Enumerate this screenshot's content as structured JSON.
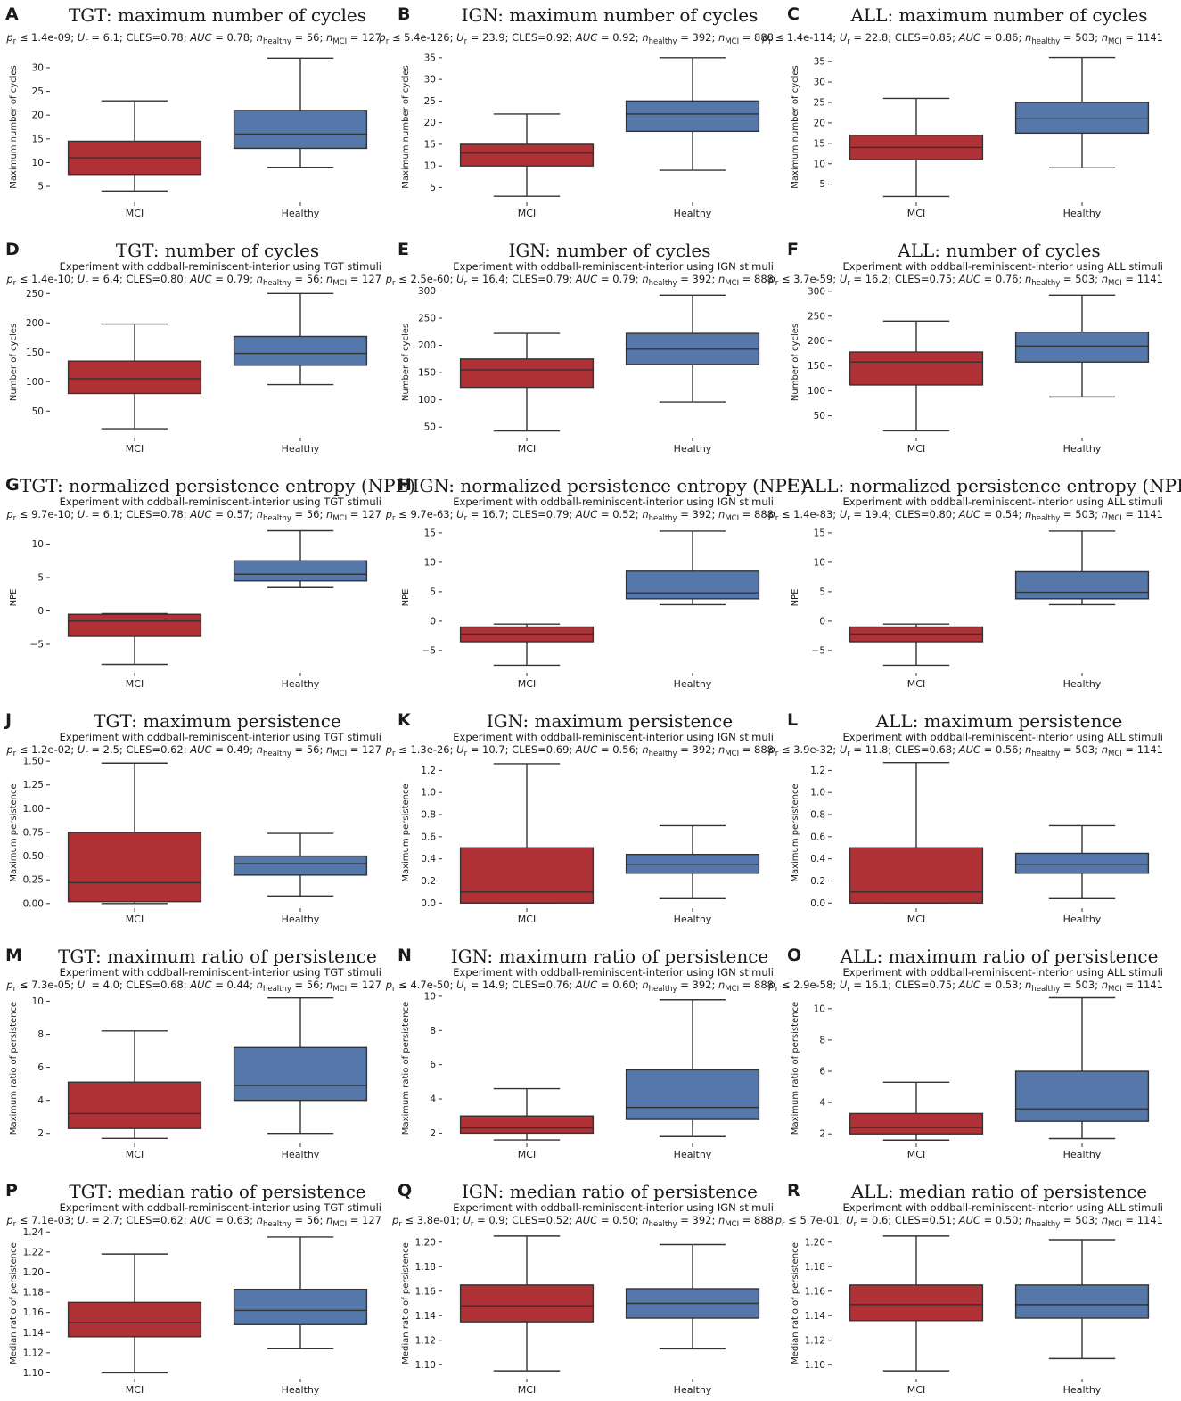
{
  "colors": {
    "mci": "#b03236",
    "healthy": "#5577aa",
    "line": "#333333"
  },
  "chart_data": [
    {
      "letter": "A",
      "title": "TGT: maximum number of cycles",
      "subtitle": "",
      "stats": {
        "p": "1.4e-09",
        "U": "6.1",
        "cles": "0.78",
        "auc": "0.78",
        "n_healthy": "56",
        "n_mci": "127"
      },
      "type": "box",
      "ylabel": "Maximum number of cycles",
      "ylim": [
        2,
        33
      ],
      "yticks": [
        5,
        10,
        15,
        20,
        25,
        30
      ],
      "yticklabels": [
        "5",
        "10",
        "15",
        "20",
        "25",
        "30"
      ],
      "categories": [
        "MCI",
        "Healthy"
      ],
      "boxes": [
        {
          "min": 4,
          "q1": 7.5,
          "median": 11,
          "q3": 14.5,
          "max": 23
        },
        {
          "min": 9,
          "q1": 13,
          "median": 16,
          "q3": 21,
          "max": 32
        }
      ]
    },
    {
      "letter": "B",
      "title": "IGN: maximum number of cycles",
      "subtitle": "",
      "stats": {
        "p": "5.4e-126",
        "U": "23.9",
        "cles": "0.92",
        "auc": "0.92",
        "n_healthy": "392",
        "n_mci": "888"
      },
      "type": "box",
      "ylabel": "Maximum number of cycles",
      "ylim": [
        2,
        36
      ],
      "yticks": [
        5,
        10,
        15,
        20,
        25,
        30,
        35
      ],
      "yticklabels": [
        "5",
        "10",
        "15",
        "20",
        "25",
        "30",
        "35"
      ],
      "categories": [
        "MCI",
        "Healthy"
      ],
      "boxes": [
        {
          "min": 3,
          "q1": 10,
          "median": 13,
          "q3": 15,
          "max": 22
        },
        {
          "min": 9,
          "q1": 18,
          "median": 22,
          "q3": 25,
          "max": 35
        }
      ]
    },
    {
      "letter": "C",
      "title": "ALL: maximum number of cycles",
      "subtitle": "",
      "stats": {
        "p": "1.4e-114",
        "U": "22.8",
        "cles": "0.85",
        "auc": "0.86",
        "n_healthy": "503",
        "n_mci": "1141"
      },
      "type": "box",
      "ylabel": "Maximum number of cycles",
      "ylim": [
        1,
        37
      ],
      "yticks": [
        5,
        10,
        15,
        20,
        25,
        30,
        35
      ],
      "yticklabels": [
        "5",
        "10",
        "15",
        "20",
        "25",
        "30",
        "35"
      ],
      "categories": [
        "MCI",
        "Healthy"
      ],
      "boxes": [
        {
          "min": 2,
          "q1": 11,
          "median": 14,
          "q3": 17,
          "max": 26
        },
        {
          "min": 9,
          "q1": 17.5,
          "median": 21,
          "q3": 25,
          "max": 36
        }
      ]
    },
    {
      "letter": "D",
      "title": "TGT: number of cycles",
      "subtitle": "Experiment with oddball-reminiscent-interior using TGT stimuli",
      "stats": {
        "p": "1.4e-10",
        "U": "6.4",
        "cles": "0.80",
        "auc": "0.79",
        "n_healthy": "56",
        "n_mci": "127"
      },
      "type": "box",
      "ylabel": "Number of cycles",
      "ylim": [
        8,
        258
      ],
      "yticks": [
        50,
        100,
        150,
        200,
        250
      ],
      "yticklabels": [
        "50",
        "100",
        "150",
        "200",
        "250"
      ],
      "categories": [
        "MCI",
        "Healthy"
      ],
      "boxes": [
        {
          "min": 20,
          "q1": 80,
          "median": 105,
          "q3": 135,
          "max": 198
        },
        {
          "min": 95,
          "q1": 128,
          "median": 148,
          "q3": 177,
          "max": 250
        }
      ]
    },
    {
      "letter": "E",
      "title": "IGN: number of cycles",
      "subtitle": "Experiment with oddball-reminiscent-interior using IGN stimuli",
      "stats": {
        "p": "2.5e-60",
        "U": "16.4",
        "cles": "0.79",
        "auc": "0.79",
        "n_healthy": "392",
        "n_mci": "888"
      },
      "type": "box",
      "ylabel": "Number of cycles",
      "ylim": [
        34,
        304
      ],
      "yticks": [
        50,
        100,
        150,
        200,
        250,
        300
      ],
      "yticklabels": [
        "50",
        "100",
        "150",
        "200",
        "250",
        "300"
      ],
      "categories": [
        "MCI",
        "Healthy"
      ],
      "boxes": [
        {
          "min": 43,
          "q1": 123,
          "median": 155,
          "q3": 175,
          "max": 222
        },
        {
          "min": 96,
          "q1": 165,
          "median": 193,
          "q3": 222,
          "max": 292
        }
      ]
    },
    {
      "letter": "F",
      "title": "ALL: number of cycles",
      "subtitle": "Experiment with oddball-reminiscent-interior using ALL stimuli",
      "stats": {
        "p": "3.7e-59",
        "U": "16.2",
        "cles": "0.75",
        "auc": "0.76",
        "n_healthy": "503",
        "n_mci": "1141"
      },
      "type": "box",
      "ylabel": "Number of cycles",
      "ylim": [
        10,
        305
      ],
      "yticks": [
        50,
        100,
        150,
        200,
        250,
        300
      ],
      "yticklabels": [
        "50",
        "100",
        "150",
        "200",
        "250",
        "300"
      ],
      "categories": [
        "MCI",
        "Healthy"
      ],
      "boxes": [
        {
          "min": 20,
          "q1": 112,
          "median": 158,
          "q3": 178,
          "max": 240
        },
        {
          "min": 88,
          "q1": 158,
          "median": 190,
          "q3": 218,
          "max": 292
        }
      ]
    },
    {
      "letter": "G",
      "title": "TGT: normalized persistence entropy (NPE)",
      "subtitle": "Experiment with oddball-reminiscent-interior using TGT stimuli",
      "stats": {
        "p": "9.7e-10",
        "U": "6.1",
        "cles": "0.78",
        "auc": "0.57",
        "n_healthy": "56",
        "n_mci": "127"
      },
      "type": "box",
      "ylabel": "NPE",
      "ylim": [
        -9,
        13
      ],
      "yticks": [
        -5,
        0,
        5,
        10
      ],
      "yticklabels": [
        "−5",
        "0",
        "5",
        "10"
      ],
      "categories": [
        "MCI",
        "Healthy"
      ],
      "boxes": [
        {
          "min": -8,
          "q1": -3.8,
          "median": -1.5,
          "q3": -0.5,
          "max": -0.4
        },
        {
          "min": 3.5,
          "q1": 4.5,
          "median": 5.5,
          "q3": 7.5,
          "max": 12
        }
      ]
    },
    {
      "letter": "H",
      "title": "IGN: normalized persistence entropy (NPE)",
      "subtitle": "Experiment with oddball-reminiscent-interior using IGN stimuli",
      "stats": {
        "p": "9.7e-63",
        "U": "16.7",
        "cles": "0.79",
        "auc": "0.52",
        "n_healthy": "392",
        "n_mci": "888"
      },
      "type": "box",
      "ylabel": "NPE",
      "ylim": [
        -8.5,
        16.5
      ],
      "yticks": [
        -5,
        0,
        5,
        10,
        15
      ],
      "yticklabels": [
        "−5",
        "0",
        "5",
        "10",
        "15"
      ],
      "categories": [
        "MCI",
        "Healthy"
      ],
      "boxes": [
        {
          "min": -7.5,
          "q1": -3.5,
          "median": -2.2,
          "q3": -1,
          "max": -0.5
        },
        {
          "min": 2.8,
          "q1": 3.8,
          "median": 4.8,
          "q3": 8.5,
          "max": 15.3
        }
      ]
    },
    {
      "letter": "I",
      "title": "ALL: normalized persistence entropy (NPE)",
      "subtitle": "Experiment with oddball-reminiscent-interior using ALL stimuli",
      "stats": {
        "p": "1.4e-83",
        "U": "19.4",
        "cles": "0.80",
        "auc": "0.54",
        "n_healthy": "503",
        "n_mci": "1141"
      },
      "type": "box",
      "ylabel": "NPE",
      "ylim": [
        -8.5,
        16.5
      ],
      "yticks": [
        -5,
        0,
        5,
        10,
        15
      ],
      "yticklabels": [
        "−5",
        "0",
        "5",
        "10",
        "15"
      ],
      "categories": [
        "MCI",
        "Healthy"
      ],
      "boxes": [
        {
          "min": -7.5,
          "q1": -3.5,
          "median": -2.2,
          "q3": -1,
          "max": -0.5
        },
        {
          "min": 2.8,
          "q1": 3.8,
          "median": 4.9,
          "q3": 8.4,
          "max": 15.3
        }
      ]
    },
    {
      "letter": "J",
      "title": "TGT: maximum persistence",
      "subtitle": "Experiment with oddball-reminiscent-interior using TGT stimuli",
      "stats": {
        "p": "1.2e-02",
        "U": "2.5",
        "cles": "0.62",
        "auc": "0.49",
        "n_healthy": "56",
        "n_mci": "127"
      },
      "type": "box",
      "ylabel": "Maximum persistence",
      "ylim": [
        -0.03,
        1.52
      ],
      "yticks": [
        0,
        0.25,
        0.5,
        0.75,
        1,
        1.25,
        1.5
      ],
      "yticklabels": [
        "0.00",
        "0.25",
        "0.50",
        "0.75",
        "1.00",
        "1.25",
        "1.50"
      ],
      "categories": [
        "MCI",
        "Healthy"
      ],
      "boxes": [
        {
          "min": 0,
          "q1": 0.02,
          "median": 0.22,
          "q3": 0.75,
          "max": 1.48
        },
        {
          "min": 0.08,
          "q1": 0.3,
          "median": 0.42,
          "q3": 0.5,
          "max": 0.74
        }
      ]
    },
    {
      "letter": "K",
      "title": "IGN: maximum persistence",
      "subtitle": "Experiment with oddball-reminiscent-interior using IGN stimuli",
      "stats": {
        "p": "1.3e-26",
        "U": "10.7",
        "cles": "0.69",
        "auc": "0.56",
        "n_healthy": "392",
        "n_mci": "888"
      },
      "type": "box",
      "ylabel": "Maximum persistence",
      "ylim": [
        -0.03,
        1.3
      ],
      "yticks": [
        0,
        0.2,
        0.4,
        0.6,
        0.8,
        1,
        1.2
      ],
      "yticklabels": [
        "0.0",
        "0.2",
        "0.4",
        "0.6",
        "0.8",
        "1.0",
        "1.2"
      ],
      "categories": [
        "MCI",
        "Healthy"
      ],
      "boxes": [
        {
          "min": 0,
          "q1": 0,
          "median": 0.1,
          "q3": 0.5,
          "max": 1.26
        },
        {
          "min": 0.04,
          "q1": 0.27,
          "median": 0.35,
          "q3": 0.44,
          "max": 0.7
        }
      ]
    },
    {
      "letter": "L",
      "title": "ALL: maximum persistence",
      "subtitle": "Experiment with oddball-reminiscent-interior using ALL stimuli",
      "stats": {
        "p": "3.9e-32",
        "U": "11.8",
        "cles": "0.68",
        "auc": "0.56",
        "n_healthy": "503",
        "n_mci": "1141"
      },
      "type": "box",
      "ylabel": "Maximum persistence",
      "ylim": [
        -0.03,
        1.3
      ],
      "yticks": [
        0,
        0.2,
        0.4,
        0.6,
        0.8,
        1,
        1.2
      ],
      "yticklabels": [
        "0.0",
        "0.2",
        "0.4",
        "0.6",
        "0.8",
        "1.0",
        "1.2"
      ],
      "categories": [
        "MCI",
        "Healthy"
      ],
      "boxes": [
        {
          "min": 0,
          "q1": 0,
          "median": 0.1,
          "q3": 0.5,
          "max": 1.27
        },
        {
          "min": 0.04,
          "q1": 0.27,
          "median": 0.35,
          "q3": 0.45,
          "max": 0.7
        }
      ]
    },
    {
      "letter": "M",
      "title": "TGT: maximum ratio of persistence",
      "subtitle": "Experiment with oddball-reminiscent-interior using TGT stimuli",
      "stats": {
        "p": "7.3e-05",
        "U": "4.0",
        "cles": "0.68",
        "auc": "0.44",
        "n_healthy": "56",
        "n_mci": "127"
      },
      "type": "box",
      "ylabel": "Maximum ratio of persistence",
      "ylim": [
        1.5,
        10.4
      ],
      "yticks": [
        2,
        4,
        6,
        8,
        10
      ],
      "yticklabels": [
        "2",
        "4",
        "6",
        "8",
        "10"
      ],
      "categories": [
        "MCI",
        "Healthy"
      ],
      "boxes": [
        {
          "min": 1.7,
          "q1": 2.3,
          "median": 3.2,
          "q3": 5.1,
          "max": 8.2
        },
        {
          "min": 2,
          "q1": 4,
          "median": 4.9,
          "q3": 7.2,
          "max": 10.2
        }
      ]
    },
    {
      "letter": "N",
      "title": "IGN: maximum ratio of persistence",
      "subtitle": "Experiment with oddball-reminiscent-interior using IGN stimuli",
      "stats": {
        "p": "4.7e-50",
        "U": "14.9",
        "cles": "0.76",
        "auc": "0.60",
        "n_healthy": "392",
        "n_mci": "888"
      },
      "type": "box",
      "ylabel": "Maximum ratio of persistence",
      "ylim": [
        1.5,
        10.1
      ],
      "yticks": [
        2,
        4,
        6,
        8,
        10
      ],
      "yticklabels": [
        "2",
        "4",
        "6",
        "8",
        "10"
      ],
      "categories": [
        "MCI",
        "Healthy"
      ],
      "boxes": [
        {
          "min": 1.6,
          "q1": 2,
          "median": 2.3,
          "q3": 3,
          "max": 4.6
        },
        {
          "min": 1.8,
          "q1": 2.8,
          "median": 3.5,
          "q3": 5.7,
          "max": 9.8
        }
      ]
    },
    {
      "letter": "O",
      "title": "ALL: maximum ratio of persistence",
      "subtitle": "Experiment with oddball-reminiscent-interior using ALL stimuli",
      "stats": {
        "p": "2.9e-58",
        "U": "16.1",
        "cles": "0.75",
        "auc": "0.53",
        "n_healthy": "503",
        "n_mci": "1141"
      },
      "type": "box",
      "ylabel": "Maximum ratio of persistence",
      "ylim": [
        1.5,
        10.9
      ],
      "yticks": [
        2,
        4,
        6,
        8,
        10
      ],
      "yticklabels": [
        "2",
        "4",
        "6",
        "8",
        "10"
      ],
      "categories": [
        "MCI",
        "Healthy"
      ],
      "boxes": [
        {
          "min": 1.6,
          "q1": 2,
          "median": 2.4,
          "q3": 3.3,
          "max": 5.3
        },
        {
          "min": 1.7,
          "q1": 2.8,
          "median": 3.6,
          "q3": 6,
          "max": 10.7
        }
      ]
    },
    {
      "letter": "P",
      "title": "TGT: median ratio of persistence",
      "subtitle": "Experiment with oddball-reminiscent-interior using TGT stimuli",
      "stats": {
        "p": "7.1e-03",
        "U": "2.7",
        "cles": "0.62",
        "auc": "0.63",
        "n_healthy": "56",
        "n_mci": "127"
      },
      "type": "box",
      "ylabel": "Median ratio of persistence",
      "ylim": [
        1.096,
        1.242
      ],
      "yticks": [
        1.1,
        1.12,
        1.14,
        1.16,
        1.18,
        1.2,
        1.22,
        1.24
      ],
      "yticklabels": [
        "1.10",
        "1.12",
        "1.14",
        "1.16",
        "1.18",
        "1.20",
        "1.22",
        "1.24"
      ],
      "categories": [
        "MCI",
        "Healthy"
      ],
      "boxes": [
        {
          "min": 1.1,
          "q1": 1.136,
          "median": 1.15,
          "q3": 1.17,
          "max": 1.218
        },
        {
          "min": 1.124,
          "q1": 1.148,
          "median": 1.162,
          "q3": 1.183,
          "max": 1.235
        }
      ]
    },
    {
      "letter": "Q",
      "title": "IGN: median ratio of persistence",
      "subtitle": "Experiment with oddball-reminiscent-interior using IGN stimuli",
      "stats": {
        "p": "3.8e-01",
        "U": "0.9",
        "cles": "0.52",
        "auc": "0.50",
        "n_healthy": "392",
        "n_mci": "888"
      },
      "type": "box",
      "ylabel": "Median ratio of persistence",
      "ylim": [
        1.09,
        1.21
      ],
      "yticks": [
        1.1,
        1.12,
        1.14,
        1.16,
        1.18,
        1.2
      ],
      "yticklabels": [
        "1.10",
        "1.12",
        "1.14",
        "1.16",
        "1.18",
        "1.20"
      ],
      "categories": [
        "MCI",
        "Healthy"
      ],
      "boxes": [
        {
          "min": 1.095,
          "q1": 1.135,
          "median": 1.148,
          "q3": 1.165,
          "max": 1.205
        },
        {
          "min": 1.113,
          "q1": 1.138,
          "median": 1.15,
          "q3": 1.162,
          "max": 1.198
        }
      ]
    },
    {
      "letter": "R",
      "title": "ALL: median ratio of persistence",
      "subtitle": "Experiment with oddball-reminiscent-interior using ALL stimuli",
      "stats": {
        "p": "5.7e-01",
        "U": "0.6",
        "cles": "0.51",
        "auc": "0.50",
        "n_healthy": "503",
        "n_mci": "1141"
      },
      "type": "box",
      "ylabel": "Median ratio of persistence",
      "ylim": [
        1.09,
        1.21
      ],
      "yticks": [
        1.1,
        1.12,
        1.14,
        1.16,
        1.18,
        1.2
      ],
      "yticklabels": [
        "1.10",
        "1.12",
        "1.14",
        "1.16",
        "1.18",
        "1.20"
      ],
      "categories": [
        "MCI",
        "Healthy"
      ],
      "boxes": [
        {
          "min": 1.095,
          "q1": 1.136,
          "median": 1.149,
          "q3": 1.165,
          "max": 1.205
        },
        {
          "min": 1.105,
          "q1": 1.138,
          "median": 1.149,
          "q3": 1.165,
          "max": 1.202
        }
      ]
    }
  ]
}
